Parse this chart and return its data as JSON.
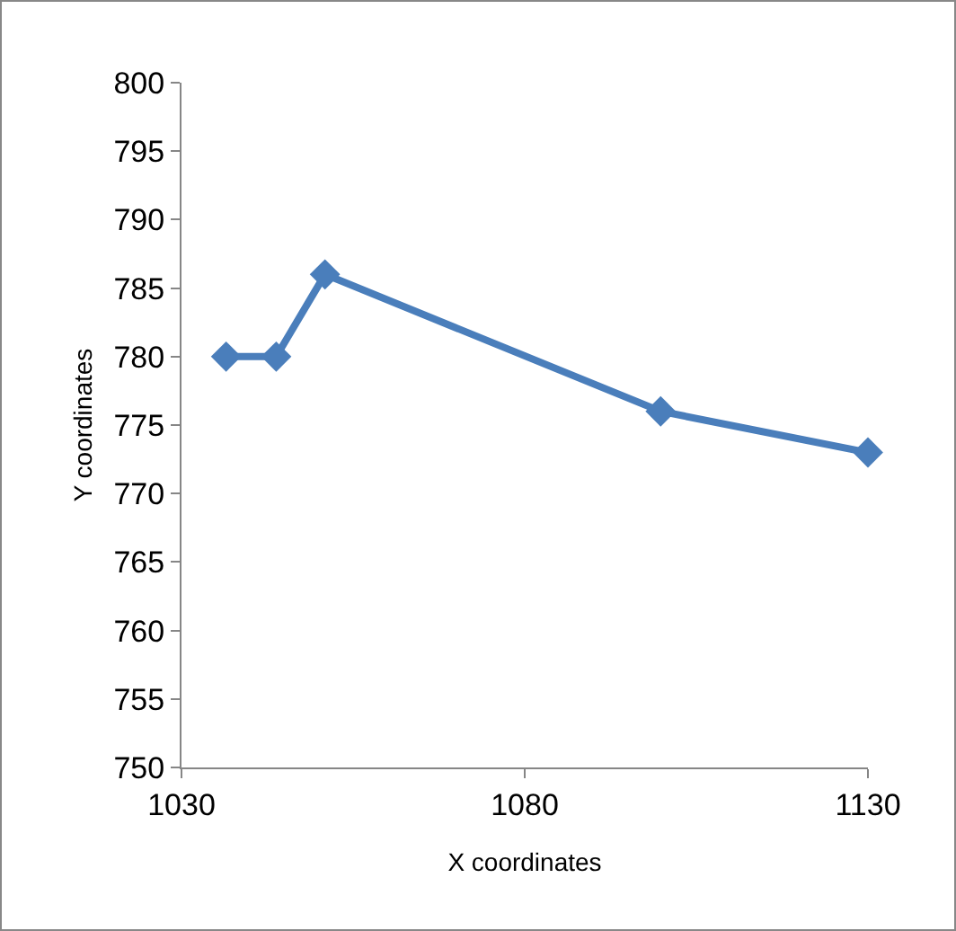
{
  "chart_data": {
    "type": "line",
    "xlabel": "X coordinates",
    "ylabel": "Y coordinates",
    "x": [
      1036.5,
      1043.8,
      1050.9,
      1099.8,
      1130
    ],
    "series": [
      {
        "color": "#4a7ebb",
        "values": [
          780,
          780,
          786,
          776,
          773
        ]
      }
    ],
    "xlim": [
      1030,
      1130
    ],
    "xticks": [
      1030,
      1080,
      1130
    ],
    "ylim": [
      750,
      800
    ],
    "yticks": [
      750,
      755,
      760,
      765,
      770,
      775,
      780,
      785,
      790,
      795,
      800
    ],
    "grid": false,
    "marker": "diamond",
    "line_style": "solid"
  }
}
